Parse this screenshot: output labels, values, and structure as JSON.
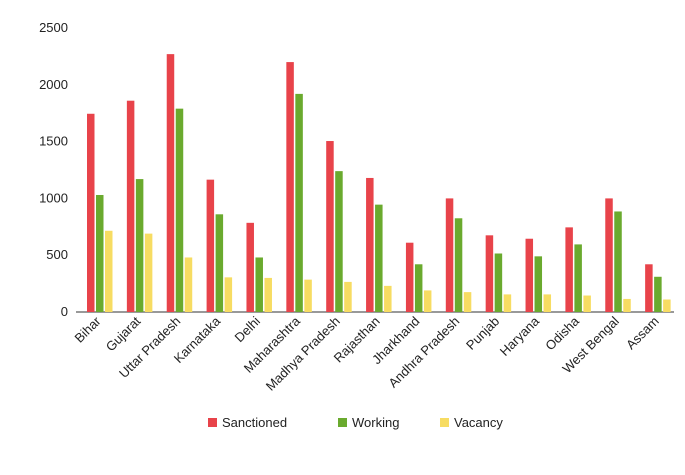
{
  "chart_data": {
    "type": "bar",
    "title": "",
    "xlabel": "",
    "ylabel": "",
    "ylim": [
      0,
      2500
    ],
    "yticks": [
      0,
      500,
      1000,
      1500,
      2000,
      2500
    ],
    "grid": false,
    "legend_position": "bottom",
    "categories": [
      "Bihar",
      "Gujarat",
      "Uttar Pradesh",
      "Karnataka",
      "Delhi",
      "Maharashtra",
      "Madhya Pradesh",
      "Rajasthan",
      "Jharkhand",
      "Andhra Pradesh",
      "Punjab",
      "Haryana",
      "Odisha",
      "West Bengal",
      "Assam"
    ],
    "series": [
      {
        "name": "Sanctioned",
        "color": "#e8434a",
        "values": [
          1745,
          1860,
          2270,
          1165,
          785,
          2200,
          1505,
          1180,
          610,
          1000,
          675,
          645,
          745,
          1000,
          420
        ]
      },
      {
        "name": "Working",
        "color": "#6aaa2e",
        "values": [
          1030,
          1170,
          1790,
          860,
          480,
          1920,
          1240,
          945,
          420,
          825,
          515,
          490,
          595,
          885,
          310
        ]
      },
      {
        "name": "Vacancy",
        "color": "#f7dc62",
        "values": [
          715,
          690,
          480,
          305,
          300,
          285,
          265,
          230,
          190,
          175,
          155,
          155,
          145,
          115,
          110
        ]
      }
    ]
  }
}
